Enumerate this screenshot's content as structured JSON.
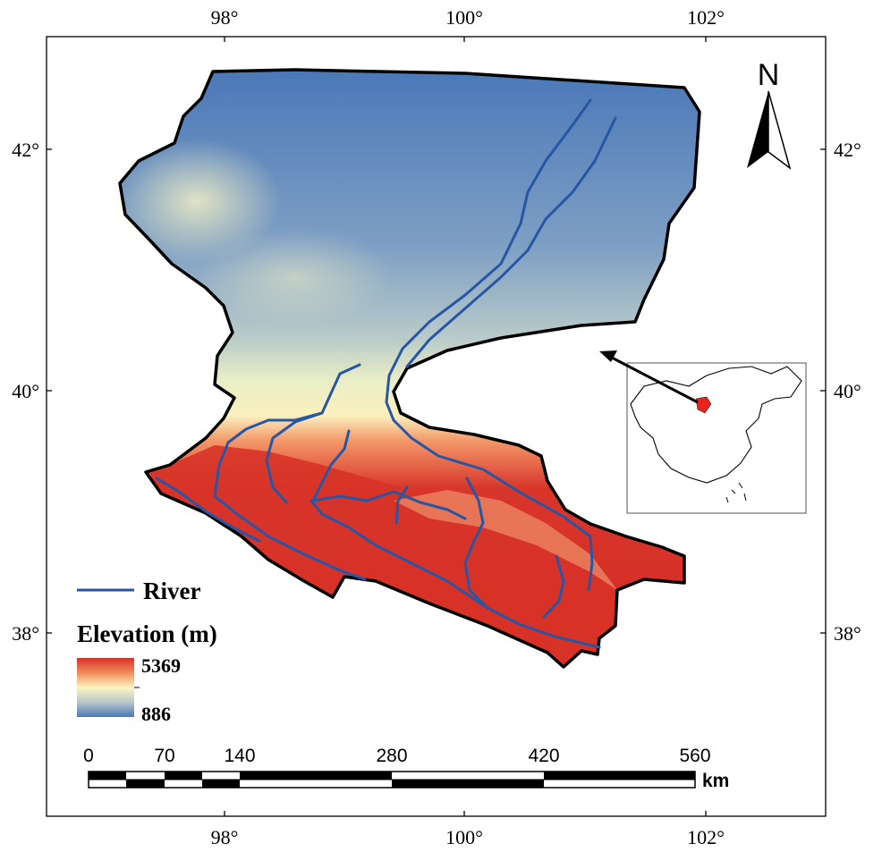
{
  "longitude_ticks": [
    "98°",
    "100°",
    "102°"
  ],
  "latitude_ticks": [
    "42°",
    "40°",
    "38°"
  ],
  "north_arrow": {
    "label": "N",
    "icon": "north-arrow-icon"
  },
  "legend": {
    "river_label": "River",
    "river_color": "#2756a5",
    "elevation_title": "Elevation (m)",
    "elevation_max": "5369",
    "elevation_min": "886",
    "ramp_colors": [
      "#d7302a",
      "#f08c5a",
      "#fdf5c2",
      "#b8c7c8",
      "#4a78b8"
    ]
  },
  "scale_bar": {
    "labels": [
      "0",
      "70",
      "140",
      "280",
      "420",
      "560"
    ],
    "unit": "km"
  },
  "inset": {
    "icon": "china-outline-icon",
    "highlight_color": "#e8231e"
  }
}
